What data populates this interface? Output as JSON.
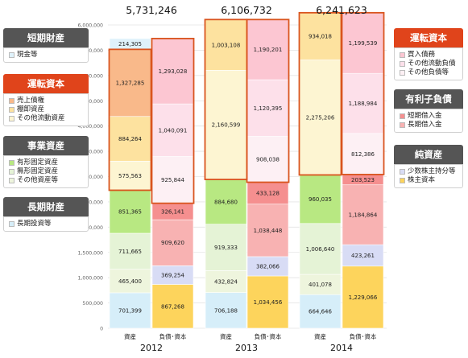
{
  "left_legend": [
    {
      "title": "短期財産",
      "header_color": "#555555",
      "items": [
        {
          "label": "現金等",
          "color": "#dff2fb"
        }
      ]
    },
    {
      "title": "運転資本",
      "header_color": "#e0441b",
      "items": [
        {
          "label": "売上債権",
          "color": "#f9b98a"
        },
        {
          "label": "棚卸資産",
          "color": "#fde29f"
        },
        {
          "label": "その他流動資産",
          "color": "#fdf5d2"
        }
      ]
    },
    {
      "title": "事業資産",
      "header_color": "#555555",
      "items": [
        {
          "label": "有形固定資産",
          "color": "#b8e882"
        },
        {
          "label": "無形固定資産",
          "color": "#e5f3d6"
        },
        {
          "label": "その他資産等",
          "color": "#eef5dd"
        }
      ]
    },
    {
      "title": "長期財産",
      "header_color": "#555555",
      "items": [
        {
          "label": "長期投資等",
          "color": "#d6eef9"
        }
      ]
    }
  ],
  "right_legend": [
    {
      "title": "運転資本",
      "header_color": "#e0441b",
      "items": [
        {
          "label": "買入債務",
          "color": "#fcc6d2"
        },
        {
          "label": "その他流動負債",
          "color": "#fde0ea"
        },
        {
          "label": "その他負債等",
          "color": "#fdf0f4"
        }
      ]
    },
    {
      "title": "有利子負債",
      "header_color": "#555555",
      "items": [
        {
          "label": "短期借入金",
          "color": "#f58f8f"
        },
        {
          "label": "長期借入金",
          "color": "#f8b2b2"
        }
      ]
    },
    {
      "title": "純資産",
      "header_color": "#555555",
      "items": [
        {
          "label": "少数株主持分等",
          "color": "#d8dcf5"
        },
        {
          "label": "株主資本",
          "color": "#fdd45c"
        }
      ]
    }
  ],
  "chart_data": {
    "type": "bar",
    "stacked": true,
    "ylim": [
      0,
      6000000
    ],
    "y_ticks": [
      "0",
      "500,000",
      "1,000,000",
      "1,500,000",
      "2,000,000",
      "2,500,000",
      "3,000,000",
      "3,500,000",
      "4,000,000",
      "4,500,000",
      "5,000,000",
      "5,500,000",
      "6,000,000"
    ],
    "grid": true,
    "years": [
      {
        "year": "2012",
        "total": "5,731,246",
        "assets_label": "資産",
        "liab_label": "負債･資本",
        "assets": [
          {
            "category": "長期投資等",
            "value": 701399,
            "label": "701,399",
            "color": "#d6eef9"
          },
          {
            "category": "その他資産等",
            "value": 465400,
            "label": "465,400",
            "color": "#eef5dd"
          },
          {
            "category": "無形固定資産",
            "value": 711665,
            "label": "711,665",
            "color": "#e5f3d6"
          },
          {
            "category": "有形固定資産",
            "value": 851365,
            "label": "851,365",
            "color": "#b8e882"
          },
          {
            "category": "その他流動資産",
            "value": 575563,
            "label": "575,563",
            "color": "#fdf5d2"
          },
          {
            "category": "棚卸資産",
            "value": 884264,
            "label": "884,264",
            "color": "#fde29f"
          },
          {
            "category": "売上債権",
            "value": 1327285,
            "label": "1,327,285",
            "color": "#f9b98a"
          },
          {
            "category": "現金等",
            "value": 214305,
            "label": "214,305",
            "color": "#dff2fb"
          }
        ],
        "liabilities": [
          {
            "category": "株主資本",
            "value": 867268,
            "label": "867,268",
            "color": "#fdd45c"
          },
          {
            "category": "少数株主持分等",
            "value": 369254,
            "label": "369,254",
            "color": "#d8dcf5"
          },
          {
            "category": "長期借入金",
            "value": 909620,
            "label": "909,620",
            "color": "#f8b2b2"
          },
          {
            "category": "短期借入金",
            "value": 326141,
            "label": "326,141",
            "color": "#f58f8f"
          },
          {
            "category": "その他負債等",
            "value": 925844,
            "label": "925,844",
            "color": "#fdf0f4"
          },
          {
            "category": "その他流動負債",
            "value": 1040091,
            "label": "1,040,091",
            "color": "#fde0ea"
          },
          {
            "category": "買入債務",
            "value": 1293028,
            "label": "1,293,028",
            "color": "#fcc6d2"
          }
        ]
      },
      {
        "year": "2013",
        "total": "6,106,732",
        "assets_label": "資産",
        "liab_label": "負債･資本",
        "assets": [
          {
            "category": "長期投資等",
            "value": 706188,
            "label": "706,188",
            "color": "#d6eef9"
          },
          {
            "category": "その他資産等",
            "value": 432824,
            "label": "432,824",
            "color": "#eef5dd"
          },
          {
            "category": "無形固定資産",
            "value": 919333,
            "label": "919,333",
            "color": "#e5f3d6"
          },
          {
            "category": "有形固定資産",
            "value": 884680,
            "label": "884,680",
            "color": "#b8e882"
          },
          {
            "category": "その他流動資産",
            "value": 2160599,
            "label": "2,160,599",
            "color": "#fdf5d2"
          },
          {
            "category": "棚卸資産",
            "value": 1003108,
            "label": "1,003,108",
            "color": "#fde29f"
          }
        ],
        "liabilities": [
          {
            "category": "株主資本",
            "value": 1034456,
            "label": "1,034,456",
            "color": "#fdd45c"
          },
          {
            "category": "少数株主持分等",
            "value": 382066,
            "label": "382,066",
            "color": "#d8dcf5"
          },
          {
            "category": "長期借入金",
            "value": 1038448,
            "label": "1,038,448",
            "color": "#f8b2b2"
          },
          {
            "category": "短期借入金",
            "value": 433128,
            "label": "433,128",
            "color": "#f58f8f"
          },
          {
            "category": "その他負債等",
            "value": 908038,
            "label": "908,038",
            "color": "#fdf0f4"
          },
          {
            "category": "その他流動負債",
            "value": 1120395,
            "label": "1,120,395",
            "color": "#fde0ea"
          },
          {
            "category": "買入債務",
            "value": 1190201,
            "label": "1,190,201",
            "color": "#fcc6d2"
          }
        ]
      },
      {
        "year": "2014",
        "total": "6,241,623",
        "assets_label": "資産",
        "liab_label": "負債･資本",
        "assets": [
          {
            "category": "長期投資等",
            "value": 664646,
            "label": "664,646",
            "color": "#d6eef9"
          },
          {
            "category": "その他資産等",
            "value": 401078,
            "label": "401,078",
            "color": "#eef5dd"
          },
          {
            "category": "無形固定資産",
            "value": 1006640,
            "label": "1,006,640",
            "color": "#e5f3d6"
          },
          {
            "category": "有形固定資産",
            "value": 960035,
            "label": "960,035",
            "color": "#b8e882"
          },
          {
            "category": "その他流動資産",
            "value": 2275206,
            "label": "2,275,206",
            "color": "#fdf5d2"
          },
          {
            "category": "棚卸資産",
            "value": 934018,
            "label": "934,018",
            "color": "#fde29f"
          }
        ],
        "liabilities": [
          {
            "category": "株主資本",
            "value": 1229066,
            "label": "1,229,066",
            "color": "#fdd45c"
          },
          {
            "category": "少数株主持分等",
            "value": 423261,
            "label": "423,261",
            "color": "#d8dcf5"
          },
          {
            "category": "長期借入金",
            "value": 1184864,
            "label": "1,184,864",
            "color": "#f8b2b2"
          },
          {
            "category": "短期借入金",
            "value": 203523,
            "label": "203,523",
            "color": "#f58f8f"
          },
          {
            "category": "その他負債等",
            "value": 812386,
            "label": "812,386",
            "color": "#fdf0f4"
          },
          {
            "category": "その他流動負債",
            "value": 1188984,
            "label": "1,188,984",
            "color": "#fde0ea"
          },
          {
            "category": "買入債務",
            "value": 1199539,
            "label": "1,199,539",
            "color": "#fcc6d2"
          }
        ]
      }
    ]
  }
}
